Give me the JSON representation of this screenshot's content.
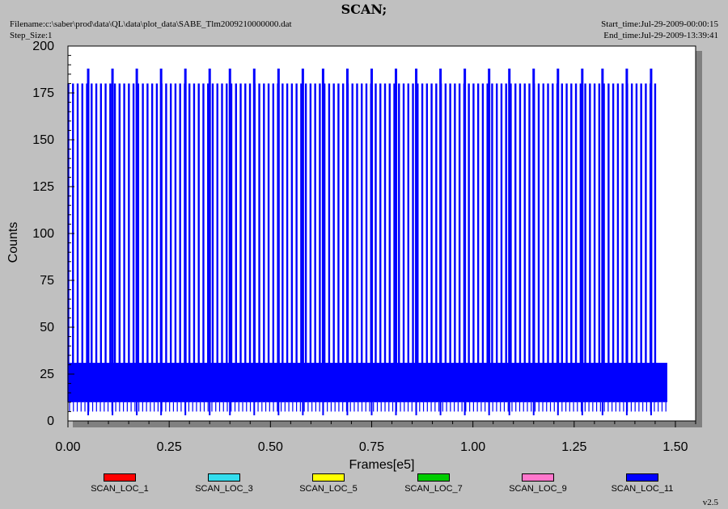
{
  "header": {
    "title": "SCAN;",
    "filename": "Filename:c:\\saber\\prod\\data\\QL\\data\\plot_data\\SABE_Tlm2009210000000.dat",
    "step_size": "Step_Size:1",
    "start_time": "Start_time:Jul-29-2009-00:00:15",
    "end_time": "End_time:Jul-29-2009-13:39:41"
  },
  "version": "v2.5",
  "chart_data": {
    "type": "line",
    "title": "SCAN;",
    "xlabel": "Frames[e5]",
    "ylabel": "Counts",
    "xlim": [
      0,
      1.55
    ],
    "ylim": [
      0,
      200
    ],
    "x_ticks": [
      "0.00",
      "0.25",
      "0.50",
      "0.75",
      "1.00",
      "1.25",
      "1.50"
    ],
    "y_ticks": [
      "0",
      "25",
      "50",
      "75",
      "100",
      "125",
      "150",
      "175",
      "200"
    ],
    "grid": false,
    "legend_position": "bottom",
    "series": [
      {
        "name": "SCAN_LOC_1",
        "color": "#ff0000",
        "points": []
      },
      {
        "name": "SCAN_LOC_3",
        "color": "#33ddee",
        "points": []
      },
      {
        "name": "SCAN_LOC_5",
        "color": "#ffff00",
        "points": []
      },
      {
        "name": "SCAN_LOC_7",
        "color": "#00cc00",
        "points": []
      },
      {
        "name": "SCAN_LOC_9",
        "color": "#ff77cc",
        "points": []
      },
      {
        "name": "SCAN_LOC_11",
        "color": "#0000ff",
        "data_extent": [
          0,
          1.48
        ],
        "baseline_band": [
          10,
          31
        ],
        "spike_value": 180,
        "tall_spike_value": 188,
        "spike_interval": 0.0115,
        "tall_spikes_x": [
          0.05,
          0.11,
          0.17,
          0.23,
          0.29,
          0.35,
          0.4,
          0.46,
          0.52,
          0.58,
          0.63,
          0.69,
          0.75,
          0.81,
          0.86,
          0.92,
          0.98,
          1.04,
          1.09,
          1.15,
          1.21,
          1.27,
          1.32,
          1.38,
          1.44
        ],
        "low_dips_x": [
          0.05,
          0.11,
          0.17,
          0.23,
          0.29,
          0.35,
          0.4,
          0.46,
          0.52,
          0.58,
          0.63,
          0.69,
          0.75,
          0.81,
          0.86,
          0.92,
          0.98,
          1.04,
          1.09,
          1.15,
          1.21,
          1.27,
          1.32,
          1.38,
          1.44
        ]
      }
    ]
  }
}
